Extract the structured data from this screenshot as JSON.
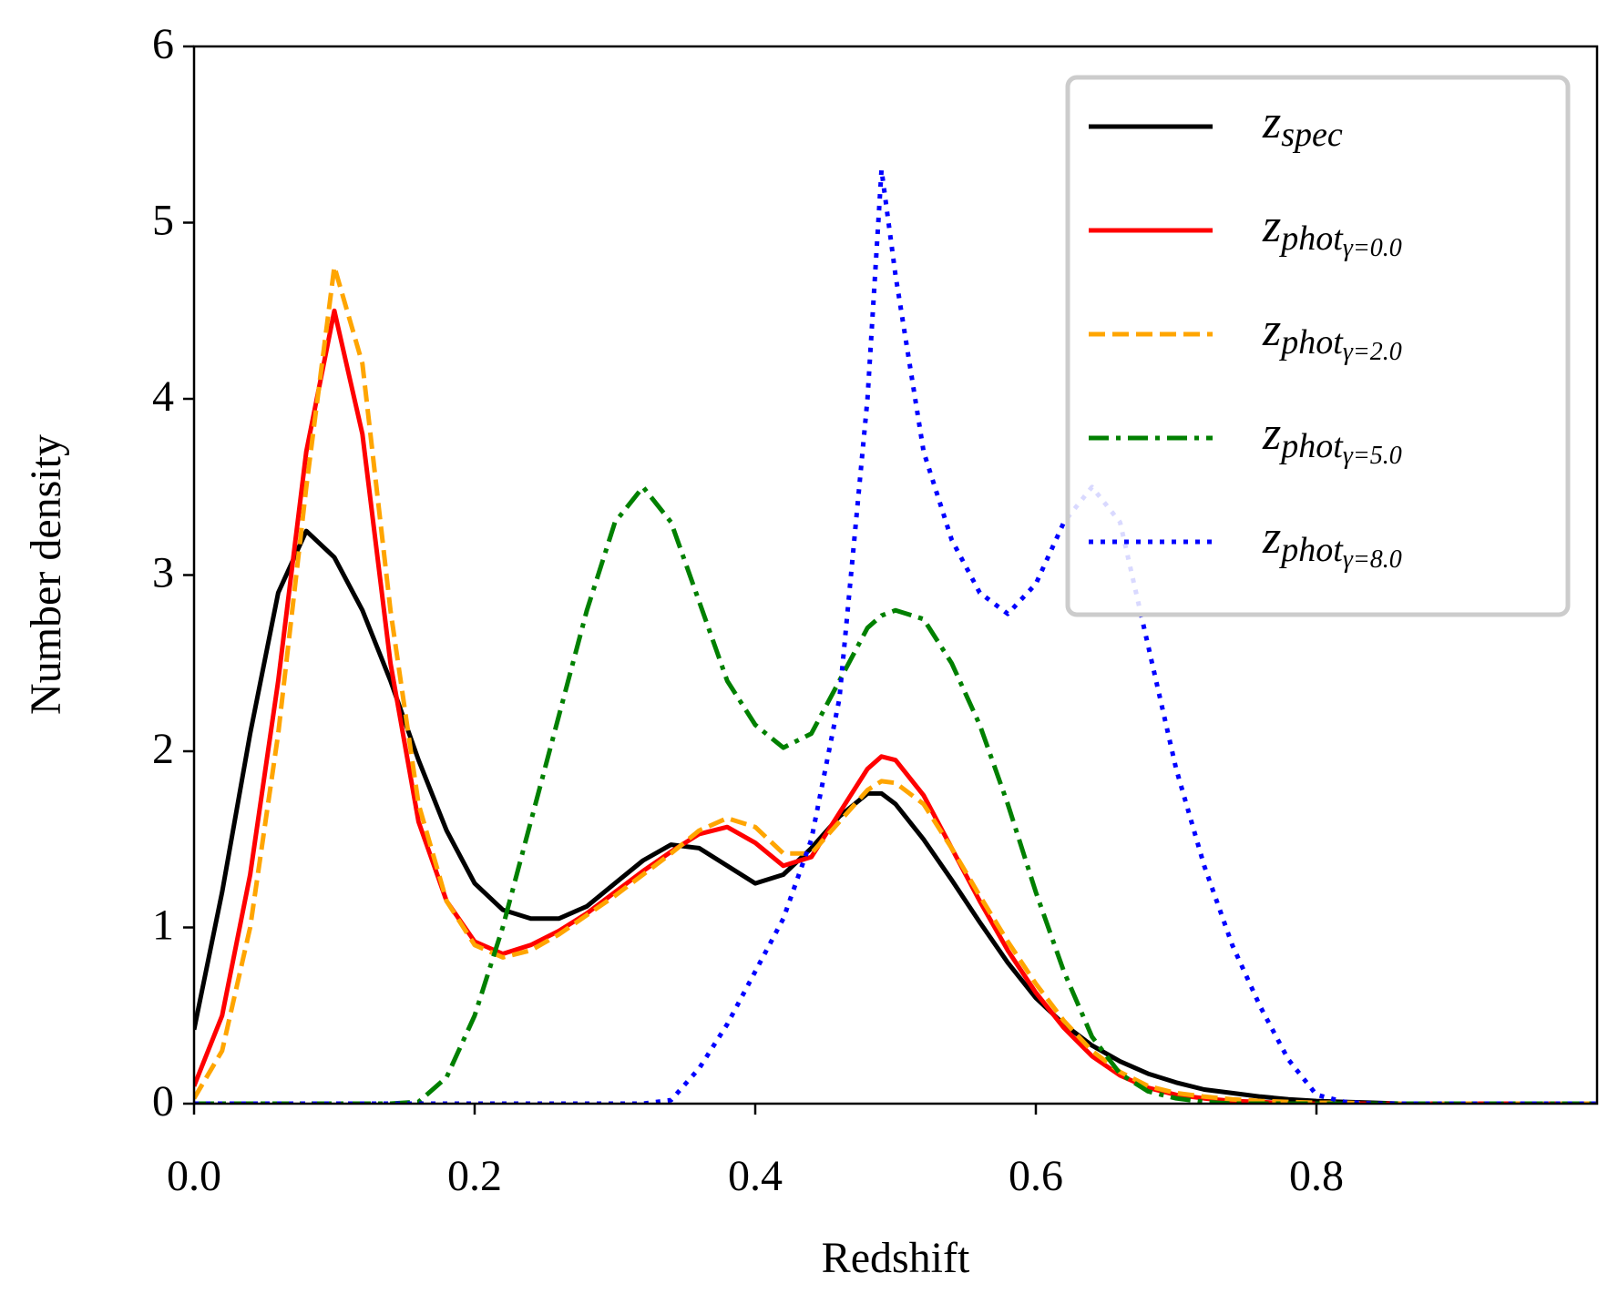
{
  "chart_data": {
    "type": "line",
    "x_label": "Redshift",
    "y_label": "Number density",
    "x": [
      0,
      0.02,
      0.04,
      0.06,
      0.08,
      0.1,
      0.12,
      0.14,
      0.16,
      0.18,
      0.2,
      0.22,
      0.24,
      0.26,
      0.28,
      0.3,
      0.32,
      0.34,
      0.36,
      0.38,
      0.4,
      0.42,
      0.44,
      0.46,
      0.48,
      0.49,
      0.5,
      0.52,
      0.54,
      0.56,
      0.58,
      0.6,
      0.62,
      0.64,
      0.66,
      0.68,
      0.7,
      0.72,
      0.74,
      0.76,
      0.78,
      0.8,
      0.82,
      0.84,
      0.86,
      0.88,
      0.9,
      0.92,
      0.94,
      0.96,
      0.98,
      1.0
    ],
    "series": [
      {
        "name": "z_spec",
        "color": "#000000",
        "linestyle": "solid",
        "values": [
          0.42,
          1.2,
          2.1,
          2.9,
          3.25,
          3.1,
          2.8,
          2.4,
          1.95,
          1.55,
          1.25,
          1.1,
          1.05,
          1.05,
          1.12,
          1.25,
          1.38,
          1.47,
          1.45,
          1.35,
          1.25,
          1.3,
          1.45,
          1.63,
          1.76,
          1.76,
          1.7,
          1.5,
          1.27,
          1.03,
          0.8,
          0.6,
          0.45,
          0.33,
          0.24,
          0.17,
          0.12,
          0.08,
          0.06,
          0.04,
          0.025,
          0.015,
          0.01,
          0.005,
          0,
          0,
          0,
          0,
          0,
          0,
          0,
          0
        ]
      },
      {
        "name": "z_phot_γ=0.0",
        "color": "#ff0000",
        "linestyle": "solid",
        "values": [
          0.1,
          0.5,
          1.3,
          2.4,
          3.7,
          4.5,
          3.8,
          2.5,
          1.6,
          1.15,
          0.92,
          0.85,
          0.9,
          0.98,
          1.08,
          1.2,
          1.32,
          1.43,
          1.53,
          1.57,
          1.48,
          1.35,
          1.4,
          1.65,
          1.9,
          1.97,
          1.95,
          1.75,
          1.45,
          1.15,
          0.87,
          0.63,
          0.43,
          0.27,
          0.16,
          0.09,
          0.05,
          0.03,
          0.015,
          0.01,
          0,
          0,
          0,
          0,
          0,
          0,
          0,
          0,
          0,
          0,
          0,
          0
        ]
      },
      {
        "name": "z_phot_γ=2.0",
        "color": "#ffa500",
        "linestyle": "dashed",
        "values": [
          0.03,
          0.3,
          1.0,
          2.1,
          3.5,
          4.75,
          4.2,
          2.8,
          1.7,
          1.15,
          0.9,
          0.83,
          0.87,
          0.96,
          1.07,
          1.18,
          1.3,
          1.42,
          1.55,
          1.62,
          1.57,
          1.42,
          1.42,
          1.6,
          1.78,
          1.83,
          1.82,
          1.7,
          1.45,
          1.18,
          0.92,
          0.68,
          0.47,
          0.3,
          0.18,
          0.1,
          0.06,
          0.04,
          0.025,
          0.015,
          0.01,
          0.005,
          0.005,
          0,
          0,
          0,
          0,
          0,
          0,
          0,
          0,
          0
        ]
      },
      {
        "name": "z_phot_γ=5.0",
        "color": "#008000",
        "linestyle": "dashdot",
        "values": [
          0,
          0,
          0,
          0,
          0,
          0,
          0,
          0,
          0.01,
          0.15,
          0.5,
          1.0,
          1.6,
          2.2,
          2.8,
          3.3,
          3.5,
          3.3,
          2.85,
          2.4,
          2.15,
          2.02,
          2.1,
          2.4,
          2.7,
          2.77,
          2.8,
          2.75,
          2.5,
          2.15,
          1.7,
          1.2,
          0.75,
          0.38,
          0.17,
          0.07,
          0.03,
          0.01,
          0,
          0,
          0,
          0,
          0,
          0,
          0,
          0,
          0,
          0,
          0,
          0,
          0,
          0
        ]
      },
      {
        "name": "z_phot_γ=8.0",
        "color": "#0000ff",
        "linestyle": "dotted",
        "values": [
          0,
          0,
          0,
          0,
          0,
          0,
          0,
          0,
          0,
          0,
          0,
          0,
          0,
          0,
          0,
          0,
          0,
          0.02,
          0.2,
          0.45,
          0.75,
          1.05,
          1.5,
          2.3,
          4.0,
          5.3,
          4.7,
          3.7,
          3.2,
          2.9,
          2.78,
          2.95,
          3.3,
          3.5,
          3.3,
          2.6,
          1.9,
          1.35,
          0.9,
          0.55,
          0.25,
          0.05,
          0.01,
          0,
          0,
          0,
          0,
          0,
          0,
          0,
          0,
          0
        ]
      }
    ],
    "xlim": [
      0,
      1
    ],
    "ylim": [
      0,
      6
    ],
    "xticks": [
      {
        "value": 0,
        "label": "0.0"
      },
      {
        "value": 0.2,
        "label": "0.2"
      },
      {
        "value": 0.4,
        "label": "0.4"
      },
      {
        "value": 0.6,
        "label": "0.6"
      },
      {
        "value": 0.8,
        "label": "0.8"
      }
    ],
    "yticks": [
      0,
      1,
      2,
      3,
      4,
      5,
      6
    ],
    "grid": false,
    "legend": "upper right"
  }
}
